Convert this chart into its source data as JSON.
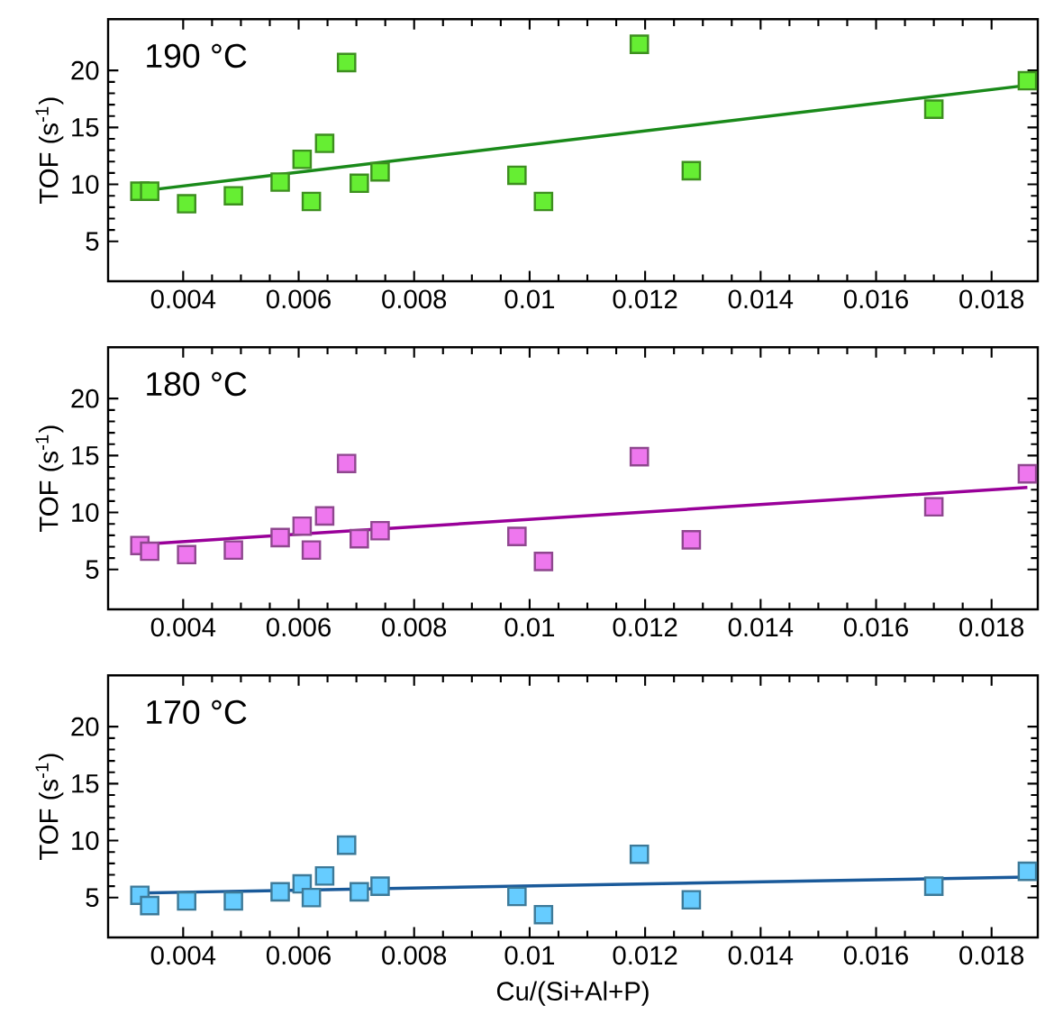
{
  "chart_data": [
    {
      "type": "scatter",
      "title": "190 °C",
      "ylabel": "TOF (s$^{-1}$)",
      "xlim": [
        0.0027,
        0.0188
      ],
      "ylim": [
        1.5,
        24.5
      ],
      "xticks": [
        0.004,
        0.006,
        0.008,
        0.01,
        0.012,
        0.014,
        0.016,
        0.018
      ],
      "yticks": [
        5,
        10,
        15,
        20
      ],
      "grid": false,
      "series": [
        {
          "marker": "square",
          "color": "#66ee33",
          "x": [
            0.00325,
            0.00342,
            0.00406,
            0.00487,
            0.00568,
            0.00606,
            0.00622,
            0.00645,
            0.00683,
            0.00705,
            0.00741,
            0.00978,
            0.01024,
            0.0119,
            0.0128,
            0.017,
            0.01862
          ],
          "values": [
            9.4,
            9.4,
            8.3,
            9.0,
            10.2,
            12.2,
            8.5,
            13.6,
            20.7,
            10.1,
            11.1,
            10.8,
            8.5,
            22.3,
            11.2,
            16.6,
            19.1
          ]
        },
        {
          "type": "line",
          "color": "#1a8a1a",
          "x": [
            0.00325,
            0.01862
          ],
          "values": [
            9.4,
            18.7
          ]
        }
      ]
    },
    {
      "type": "scatter",
      "title": "180 °C",
      "ylabel": "TOF (s$^{-1}$)",
      "xlim": [
        0.0027,
        0.0188
      ],
      "ylim": [
        1.5,
        24.5
      ],
      "xticks": [
        0.004,
        0.006,
        0.008,
        0.01,
        0.012,
        0.014,
        0.016,
        0.018
      ],
      "yticks": [
        5,
        10,
        15,
        20
      ],
      "grid": false,
      "series": [
        {
          "marker": "square",
          "color": "#ee77ee",
          "x": [
            0.00325,
            0.00342,
            0.00406,
            0.00487,
            0.00568,
            0.00606,
            0.00622,
            0.00645,
            0.00683,
            0.00705,
            0.00741,
            0.00978,
            0.01024,
            0.0119,
            0.0128,
            0.017,
            0.01862
          ],
          "values": [
            7.1,
            6.6,
            6.3,
            6.7,
            7.8,
            8.8,
            6.7,
            9.7,
            14.3,
            7.7,
            8.4,
            7.9,
            5.7,
            14.9,
            7.6,
            10.5,
            13.4
          ]
        },
        {
          "type": "line",
          "color": "#990099",
          "x": [
            0.00325,
            0.01862
          ],
          "values": [
            7.2,
            12.2
          ]
        }
      ]
    },
    {
      "type": "scatter",
      "title": "170 °C",
      "xlabel": "Cu/(Si+Al+P)",
      "ylabel": "TOF (s$^{-1}$)",
      "xlim": [
        0.0027,
        0.0188
      ],
      "ylim": [
        1.5,
        24.5
      ],
      "xticks": [
        0.004,
        0.006,
        0.008,
        0.01,
        0.012,
        0.014,
        0.016,
        0.018
      ],
      "yticks": [
        5,
        10,
        15,
        20
      ],
      "grid": false,
      "series": [
        {
          "marker": "square",
          "color": "#66ccff",
          "x": [
            0.00325,
            0.00342,
            0.00406,
            0.00487,
            0.00568,
            0.00606,
            0.00622,
            0.00645,
            0.00683,
            0.00705,
            0.00741,
            0.00978,
            0.01024,
            0.0119,
            0.0128,
            0.017,
            0.01862
          ],
          "values": [
            5.2,
            4.3,
            4.7,
            4.7,
            5.5,
            6.2,
            5.0,
            6.9,
            9.6,
            5.5,
            6.0,
            5.1,
            3.5,
            8.8,
            4.8,
            6.0,
            7.3
          ]
        },
        {
          "type": "line",
          "color": "#1a5a9a",
          "x": [
            0.00325,
            0.01862
          ],
          "values": [
            5.4,
            6.8
          ]
        }
      ]
    }
  ]
}
